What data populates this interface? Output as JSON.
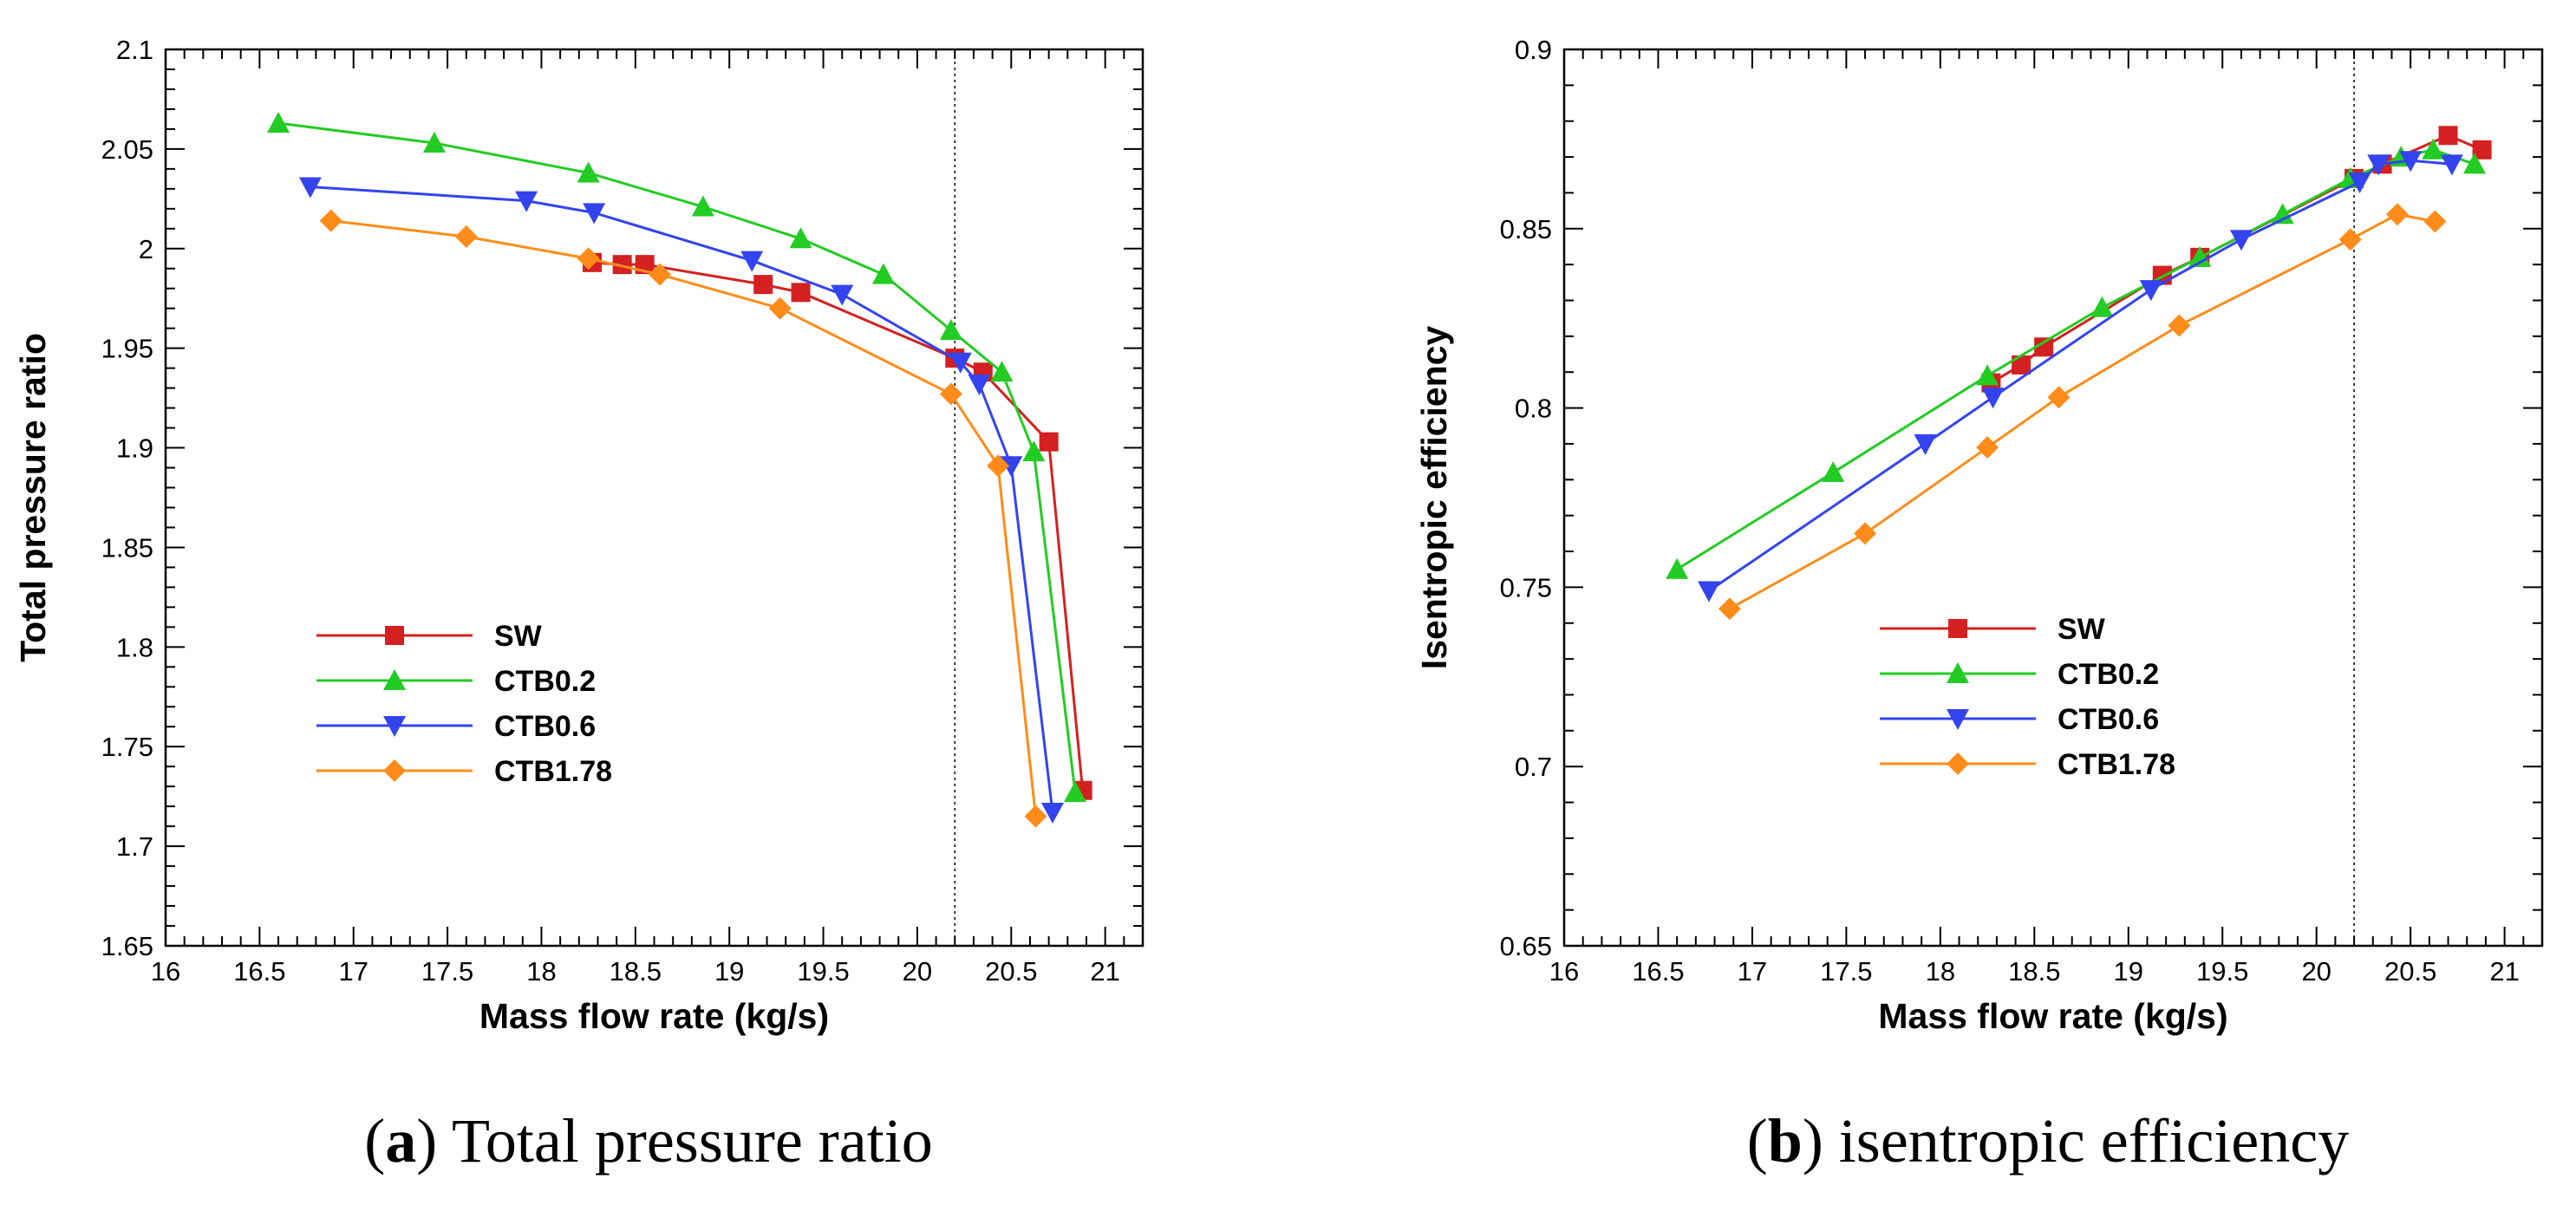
{
  "chart_data": [
    {
      "id": "a",
      "type": "line",
      "caption_letter": "a",
      "caption_text": "Total pressure ratio",
      "xlabel": "Mass flow rate (kg/s)",
      "ylabel": "Total pressure ratio",
      "xlim": [
        16,
        21.2
      ],
      "ylim": [
        1.65,
        2.1
      ],
      "xticks": [
        16,
        16.5,
        17,
        17.5,
        18,
        18.5,
        19,
        19.5,
        20,
        20.5,
        21
      ],
      "xtick_labels": [
        "16",
        "16.5",
        "17",
        "17.5",
        "18",
        "18.5",
        "19",
        "19.5",
        "20",
        "20.5",
        "21"
      ],
      "yticks": [
        1.65,
        1.7,
        1.75,
        1.8,
        1.85,
        1.9,
        1.95,
        2.0,
        2.05,
        2.1
      ],
      "ytick_labels": [
        "1.65",
        "1.7",
        "1.75",
        "1.8",
        "1.85",
        "1.9",
        "1.95",
        "2",
        "2.05",
        "2.1"
      ],
      "vline_x": 20.2,
      "legend_position": "center-left",
      "series": [
        {
          "name": "SW",
          "color": "#d42020",
          "marker": "square",
          "x": [
            18.27,
            18.43,
            18.55,
            19.18,
            19.38,
            20.2,
            20.35,
            20.7,
            20.88
          ],
          "y": [
            1.993,
            1.992,
            1.992,
            1.982,
            1.978,
            1.945,
            1.938,
            1.903,
            1.728
          ]
        },
        {
          "name": "CTB0.2",
          "color": "#22cc22",
          "marker": "triangle-up",
          "x": [
            16.6,
            17.43,
            18.25,
            18.86,
            19.38,
            19.82,
            20.18,
            20.45,
            20.62,
            20.84
          ],
          "y": [
            2.063,
            2.053,
            2.038,
            2.021,
            2.005,
            1.987,
            1.959,
            1.938,
            1.898,
            1.727
          ]
        },
        {
          "name": "CTB0.6",
          "color": "#3344ee",
          "marker": "triangle-down",
          "x": [
            16.77,
            17.92,
            18.28,
            19.12,
            19.6,
            20.23,
            20.33,
            20.5,
            20.72
          ],
          "y": [
            2.031,
            2.024,
            2.018,
            1.994,
            1.977,
            1.943,
            1.932,
            1.891,
            1.717
          ]
        },
        {
          "name": "CTB1.78",
          "color": "#ff8c1a",
          "marker": "diamond",
          "x": [
            16.88,
            17.6,
            18.25,
            18.63,
            19.27,
            20.18,
            20.43,
            20.63
          ],
          "y": [
            2.014,
            2.006,
            1.995,
            1.987,
            1.97,
            1.927,
            1.891,
            1.715
          ]
        }
      ]
    },
    {
      "id": "b",
      "type": "line",
      "caption_letter": "b",
      "caption_text": "isentropic efficiency",
      "xlabel": "Mass flow rate (kg/s)",
      "ylabel": "Isentropic efficiency",
      "xlim": [
        16,
        21.2
      ],
      "ylim": [
        0.65,
        0.9
      ],
      "xticks": [
        16,
        16.5,
        17,
        17.5,
        18,
        18.5,
        19,
        19.5,
        20,
        20.5,
        21
      ],
      "xtick_labels": [
        "16",
        "16.5",
        "17",
        "17.5",
        "18",
        "18.5",
        "19",
        "19.5",
        "20",
        "20.5",
        "21"
      ],
      "yticks": [
        0.65,
        0.7,
        0.75,
        0.8,
        0.85,
        0.9
      ],
      "ytick_labels": [
        "0.65",
        "0.7",
        "0.75",
        "0.8",
        "0.85",
        "0.9"
      ],
      "vline_x": 20.2,
      "legend_position": "center-right",
      "series": [
        {
          "name": "SW",
          "color": "#d42020",
          "marker": "square",
          "x": [
            18.27,
            18.43,
            18.55,
            19.18,
            19.38,
            20.2,
            20.35,
            20.7,
            20.88
          ],
          "y": [
            0.807,
            0.812,
            0.817,
            0.837,
            0.842,
            0.864,
            0.868,
            0.876,
            0.872
          ]
        },
        {
          "name": "CTB0.2",
          "color": "#22cc22",
          "marker": "triangle-up",
          "x": [
            16.6,
            17.43,
            18.25,
            18.86,
            19.38,
            19.82,
            20.18,
            20.45,
            20.62,
            20.84
          ],
          "y": [
            0.755,
            0.782,
            0.809,
            0.828,
            0.842,
            0.854,
            0.864,
            0.87,
            0.872,
            0.868
          ]
        },
        {
          "name": "CTB0.6",
          "color": "#3344ee",
          "marker": "triangle-down",
          "x": [
            16.77,
            17.92,
            18.28,
            19.12,
            19.6,
            20.23,
            20.33,
            20.5,
            20.72
          ],
          "y": [
            0.749,
            0.79,
            0.803,
            0.833,
            0.847,
            0.863,
            0.868,
            0.869,
            0.868
          ]
        },
        {
          "name": "CTB1.78",
          "color": "#ff8c1a",
          "marker": "diamond",
          "x": [
            16.88,
            17.6,
            18.25,
            18.63,
            19.27,
            20.18,
            20.43,
            20.63
          ],
          "y": [
            0.744,
            0.765,
            0.789,
            0.803,
            0.823,
            0.847,
            0.854,
            0.852
          ]
        }
      ]
    }
  ]
}
